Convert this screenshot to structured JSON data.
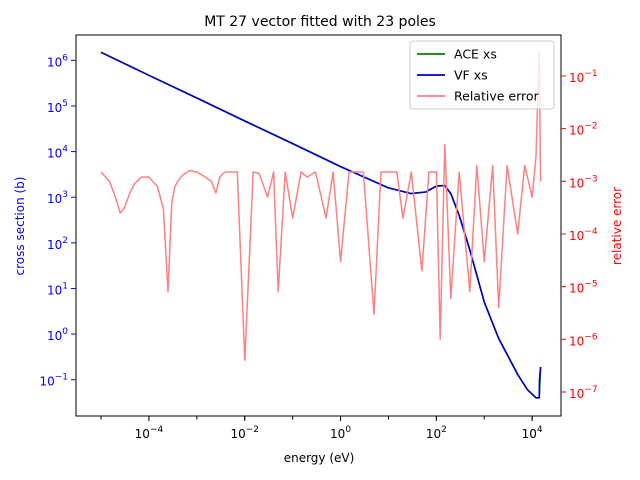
{
  "chart_data": {
    "type": "line",
    "title": "MT 27 vector fitted with 23 poles",
    "xlabel": "energy (eV)",
    "ylabel": "cross section (b)",
    "y2label": "relative error",
    "xscale": "log",
    "yscale": "log",
    "y2scale": "log",
    "xlim": [
      3e-06,
      40000.0
    ],
    "ylim": [
      0.016,
      3600000.0
    ],
    "y2lim": [
      3.5e-08,
      0.6
    ],
    "xticks": [
      {
        "value": 0.0001,
        "base": "10",
        "exp": "−4"
      },
      {
        "value": 0.01,
        "base": "10",
        "exp": "−2"
      },
      {
        "value": 1,
        "base": "10",
        "exp": "0"
      },
      {
        "value": 100,
        "base": "10",
        "exp": "2"
      },
      {
        "value": 10000,
        "base": "10",
        "exp": "4"
      }
    ],
    "yticks": [
      {
        "value": 0.1,
        "base": "10",
        "exp": "−1"
      },
      {
        "value": 1,
        "base": "10",
        "exp": "0"
      },
      {
        "value": 10,
        "base": "10",
        "exp": "1"
      },
      {
        "value": 100,
        "base": "10",
        "exp": "2"
      },
      {
        "value": 1000,
        "base": "10",
        "exp": "3"
      },
      {
        "value": 10000,
        "base": "10",
        "exp": "4"
      },
      {
        "value": 100000,
        "base": "10",
        "exp": "5"
      },
      {
        "value": 1000000,
        "base": "10",
        "exp": "6"
      }
    ],
    "y2ticks": [
      {
        "value": 1e-07,
        "base": "10",
        "exp": "−7"
      },
      {
        "value": 1e-06,
        "base": "10",
        "exp": "−6"
      },
      {
        "value": 1e-05,
        "base": "10",
        "exp": "−5"
      },
      {
        "value": 0.0001,
        "base": "10",
        "exp": "−4"
      },
      {
        "value": 0.001,
        "base": "10",
        "exp": "−3"
      },
      {
        "value": 0.01,
        "base": "10",
        "exp": "−2"
      },
      {
        "value": 0.1,
        "base": "10",
        "exp": "−1"
      }
    ],
    "legend_position": "upper right",
    "series": [
      {
        "name": "ACE xs",
        "axis": "left",
        "color": "#008000",
        "x": [
          1e-05,
          0.0001,
          0.001,
          0.01,
          0.1,
          1,
          10,
          30,
          60,
          100,
          150,
          200,
          300,
          500,
          1000,
          2000,
          5000,
          8000,
          12000,
          14000,
          15000
        ],
        "y": [
          1500000.0,
          470000.0,
          150000.0,
          47000.0,
          15000.0,
          4700.0,
          1600.0,
          1200.0,
          1300.0,
          1750.0,
          1800.0,
          1200.0,
          400,
          70,
          5,
          0.8,
          0.13,
          0.06,
          0.04,
          0.04,
          0.19
        ]
      },
      {
        "name": "VF xs",
        "axis": "left",
        "color": "#0000cc",
        "x": [
          1e-05,
          0.0001,
          0.001,
          0.01,
          0.1,
          1,
          10,
          30,
          60,
          100,
          150,
          200,
          300,
          500,
          1000,
          2000,
          5000,
          8000,
          12000,
          14000,
          14200,
          15000
        ],
        "y": [
          1500000.0,
          470000.0,
          150000.0,
          47000.0,
          15000.0,
          4700.0,
          1600.0,
          1200.0,
          1300.0,
          1750.0,
          1800.0,
          1200.0,
          400,
          70,
          5,
          0.8,
          0.13,
          0.06,
          0.04,
          0.04,
          0.1,
          0.19
        ]
      },
      {
        "name": "Relative error",
        "axis": "right",
        "color": "#ff8080",
        "x": [
          1e-05,
          1.5e-05,
          2e-05,
          2.5e-05,
          3e-05,
          4e-05,
          5e-05,
          7e-05,
          0.0001,
          0.00015,
          0.0002,
          0.00025,
          0.0003,
          0.00035,
          0.0004,
          0.0005,
          0.0007,
          0.001,
          0.0015,
          0.002,
          0.0025,
          0.003,
          0.0035,
          0.004,
          0.005,
          0.007,
          0.01,
          0.015,
          0.02,
          0.03,
          0.04,
          0.05,
          0.07,
          0.1,
          0.15,
          0.2,
          0.3,
          0.5,
          0.7,
          1,
          1.5,
          2,
          3,
          5,
          7,
          10,
          15,
          20,
          30,
          50,
          70,
          100,
          120,
          150,
          200,
          300,
          500,
          700,
          1000,
          1500,
          2000,
          3000,
          5000,
          7000,
          10000,
          12000,
          14000,
          15000
        ],
        "y": [
          0.0015,
          0.001,
          0.0005,
          0.00025,
          0.0003,
          0.0006,
          0.0009,
          0.0012,
          0.0012,
          0.0008,
          0.0003,
          8e-06,
          0.0004,
          0.0008,
          0.001,
          0.0013,
          0.0016,
          0.0015,
          0.0012,
          0.001,
          0.0006,
          0.0012,
          0.0014,
          0.0015,
          0.0015,
          0.0015,
          4e-07,
          0.0015,
          0.0014,
          0.0005,
          0.0015,
          8e-06,
          0.0015,
          0.0002,
          0.0015,
          0.0012,
          0.0015,
          0.0002,
          0.0015,
          3e-05,
          0.0015,
          0.0015,
          0.0015,
          3e-06,
          0.0015,
          0.0015,
          0.0015,
          0.0002,
          0.0015,
          2e-05,
          0.0015,
          0.0015,
          1e-06,
          0.005,
          6e-06,
          0.0015,
          8e-06,
          0.002,
          3e-05,
          0.002,
          4e-06,
          0.002,
          0.0001,
          0.002,
          0.0005,
          0.003,
          0.3,
          0.001
        ]
      }
    ]
  }
}
